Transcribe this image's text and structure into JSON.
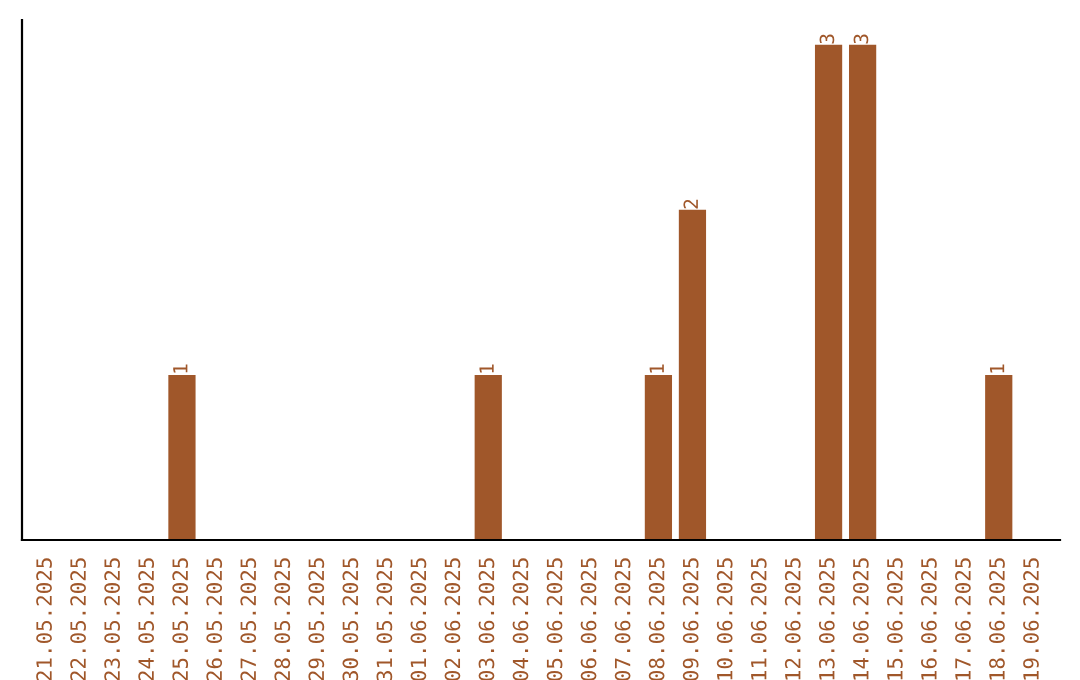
{
  "chart_data": {
    "type": "bar",
    "categories": [
      "21.05.2025",
      "22.05.2025",
      "23.05.2025",
      "24.05.2025",
      "25.05.2025",
      "26.05.2025",
      "27.05.2025",
      "28.05.2025",
      "29.05.2025",
      "30.05.2025",
      "31.05.2025",
      "01.06.2025",
      "02.06.2025",
      "03.06.2025",
      "04.06.2025",
      "05.06.2025",
      "06.06.2025",
      "07.06.2025",
      "08.06.2025",
      "09.06.2025",
      "10.06.2025",
      "11.06.2025",
      "12.06.2025",
      "13.06.2025",
      "14.06.2025",
      "15.06.2025",
      "16.06.2025",
      "17.06.2025",
      "18.06.2025",
      "19.06.2025"
    ],
    "values": [
      0,
      0,
      0,
      0,
      1,
      0,
      0,
      0,
      0,
      0,
      0,
      0,
      0,
      1,
      0,
      0,
      0,
      0,
      1,
      2,
      0,
      0,
      0,
      3,
      3,
      0,
      0,
      0,
      1,
      0
    ],
    "value_labels": [
      null,
      null,
      null,
      null,
      "1",
      null,
      null,
      null,
      null,
      null,
      null,
      null,
      null,
      "1",
      null,
      null,
      null,
      null,
      "1",
      "2",
      null,
      null,
      null,
      "3",
      "3",
      null,
      null,
      null,
      "1",
      null
    ],
    "color": "#a0572a",
    "grid": false,
    "legend": false,
    "tick_labels": "x"
  }
}
